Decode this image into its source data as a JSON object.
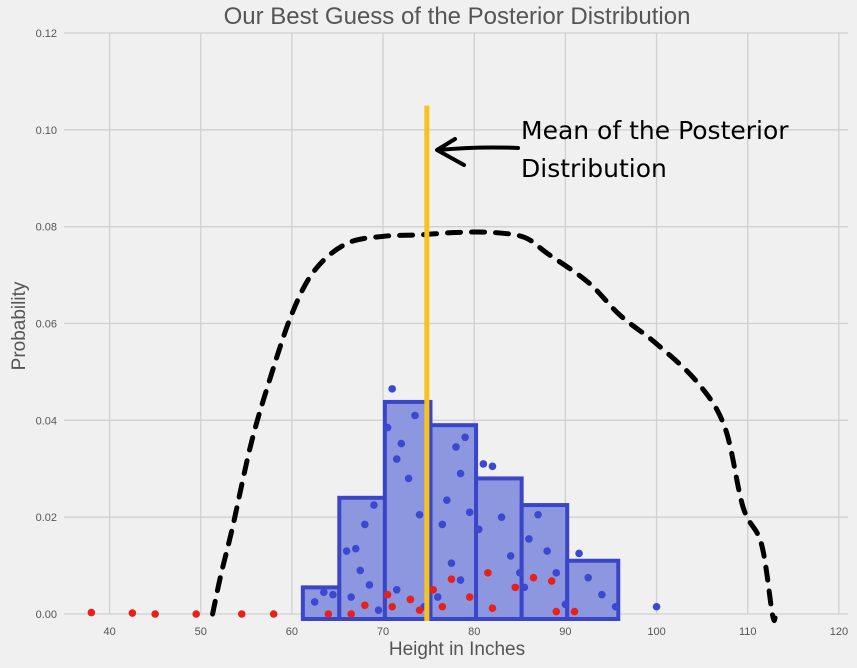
{
  "chart_data": {
    "type": "bar",
    "title": "Our Best Guess of the Posterior Distribution",
    "xlabel": "Height in Inches",
    "ylabel": "Probability",
    "xlim": [
      35,
      121
    ],
    "ylim": [
      0,
      0.12
    ],
    "x_ticks": [
      40,
      50,
      60,
      70,
      80,
      90,
      100,
      110,
      120
    ],
    "y_ticks": [
      0.0,
      0.02,
      0.04,
      0.06,
      0.08,
      0.1,
      0.12
    ],
    "x_tick_labels": [
      "40",
      "50",
      "60",
      "70",
      "80",
      "90",
      "100",
      "110",
      "120"
    ],
    "y_tick_labels": [
      "0.00",
      "0.02",
      "0.04",
      "0.06",
      "0.08",
      "0.10",
      "0.12"
    ],
    "grid": true,
    "bins": [
      {
        "x0": 61.2,
        "x1": 65.2,
        "value": 0.0055
      },
      {
        "x0": 65.2,
        "x1": 70.2,
        "value": 0.024
      },
      {
        "x0": 70.2,
        "x1": 75.2,
        "value": 0.0438
      },
      {
        "x0": 75.2,
        "x1": 80.2,
        "value": 0.039
      },
      {
        "x0": 80.2,
        "x1": 85.2,
        "value": 0.028
      },
      {
        "x0": 85.2,
        "x1": 90.2,
        "value": 0.0225
      },
      {
        "x0": 90.2,
        "x1": 95.8,
        "value": 0.011
      }
    ],
    "blue_points": [
      [
        62.5,
        0.0025
      ],
      [
        63.5,
        0.0045
      ],
      [
        64.5,
        0.004
      ],
      [
        66.0,
        0.013
      ],
      [
        67.0,
        0.0135
      ],
      [
        68.0,
        0.0185
      ],
      [
        69.0,
        0.0225
      ],
      [
        67.5,
        0.009
      ],
      [
        68.5,
        0.006
      ],
      [
        66.5,
        0.0035
      ],
      [
        69.5,
        0.0008
      ],
      [
        70.5,
        0.0385
      ],
      [
        71.0,
        0.0465
      ],
      [
        71.5,
        0.032
      ],
      [
        72.0,
        0.0352
      ],
      [
        72.8,
        0.028
      ],
      [
        73.5,
        0.041
      ],
      [
        74.0,
        0.0205
      ],
      [
        74.5,
        0.0015
      ],
      [
        71.5,
        0.005
      ],
      [
        73.0,
        0.003
      ],
      [
        76.0,
        0.0035
      ],
      [
        76.5,
        0.0185
      ],
      [
        77.0,
        0.0235
      ],
      [
        78.0,
        0.0345
      ],
      [
        78.5,
        0.029
      ],
      [
        79.0,
        0.0365
      ],
      [
        79.5,
        0.021
      ],
      [
        77.5,
        0.0105
      ],
      [
        78.5,
        0.007
      ],
      [
        80.5,
        0.0175
      ],
      [
        81.0,
        0.031
      ],
      [
        82.0,
        0.0305
      ],
      [
        83.0,
        0.02
      ],
      [
        84.0,
        0.012
      ],
      [
        85.0,
        0.0085
      ],
      [
        85.5,
        0.0055
      ],
      [
        86.0,
        0.0155
      ],
      [
        87.0,
        0.0205
      ],
      [
        88.0,
        0.013
      ],
      [
        89.0,
        0.0085
      ],
      [
        90.0,
        0.002
      ],
      [
        91.5,
        0.0125
      ],
      [
        92.5,
        0.0075
      ],
      [
        94.0,
        0.004
      ],
      [
        95.5,
        0.0015
      ],
      [
        100.0,
        0.0015
      ]
    ],
    "red_points": [
      [
        38.0,
        0.0003
      ],
      [
        42.5,
        0.0002
      ],
      [
        45.0,
        0.0
      ],
      [
        49.5,
        0.0
      ],
      [
        54.5,
        0.0
      ],
      [
        58.0,
        0.0
      ],
      [
        64.0,
        0.0
      ],
      [
        66.5,
        0.0
      ],
      [
        68.0,
        0.0018
      ],
      [
        71.0,
        0.0015
      ],
      [
        73.0,
        0.003
      ],
      [
        74.0,
        0.0008
      ],
      [
        75.5,
        0.005
      ],
      [
        76.5,
        0.0015
      ],
      [
        77.5,
        0.0072
      ],
      [
        79.5,
        0.0035
      ],
      [
        81.5,
        0.0085
      ],
      [
        82.0,
        0.0012
      ],
      [
        84.5,
        0.0055
      ],
      [
        86.5,
        0.0075
      ],
      [
        88.5,
        0.0068
      ],
      [
        89.0,
        0.0005
      ],
      [
        91.0,
        0.0005
      ],
      [
        70.5,
        0.004
      ]
    ],
    "curve": {
      "style": "dashed",
      "points": [
        [
          51.3,
          0.0
        ],
        [
          52.2,
          0.008
        ],
        [
          53.5,
          0.018
        ],
        [
          55.5,
          0.035
        ],
        [
          57.5,
          0.048
        ],
        [
          60.0,
          0.062
        ],
        [
          62.5,
          0.071
        ],
        [
          66.0,
          0.0765
        ],
        [
          70.0,
          0.078
        ],
        [
          74.0,
          0.0783
        ],
        [
          78.0,
          0.0788
        ],
        [
          82.0,
          0.0788
        ],
        [
          85.5,
          0.0778
        ],
        [
          88.0,
          0.0745
        ],
        [
          92.5,
          0.0685
        ],
        [
          96.0,
          0.0617
        ],
        [
          100.0,
          0.0558
        ],
        [
          104.5,
          0.0478
        ],
        [
          107.5,
          0.0385
        ],
        [
          109.5,
          0.022
        ],
        [
          111.5,
          0.0145
        ],
        [
          112.7,
          0.0
        ],
        [
          113.0,
          -0.0008
        ]
      ]
    },
    "mean_line": {
      "x": 74.8,
      "y0": 0.0,
      "y1": 0.105
    },
    "annotation": {
      "line1": "Mean of the Posterior",
      "line2": "Distribution"
    },
    "colors": {
      "background": "#f0f0f0",
      "grid": "#d0d0d0",
      "bar_fill": "#8d97e0",
      "bar_edge": "#3b45c8",
      "blue_point": "#3b48cf",
      "red_point": "#e8201c",
      "curve": "#000000",
      "mean_line": "#f7c21c",
      "text": "#555555"
    }
  }
}
